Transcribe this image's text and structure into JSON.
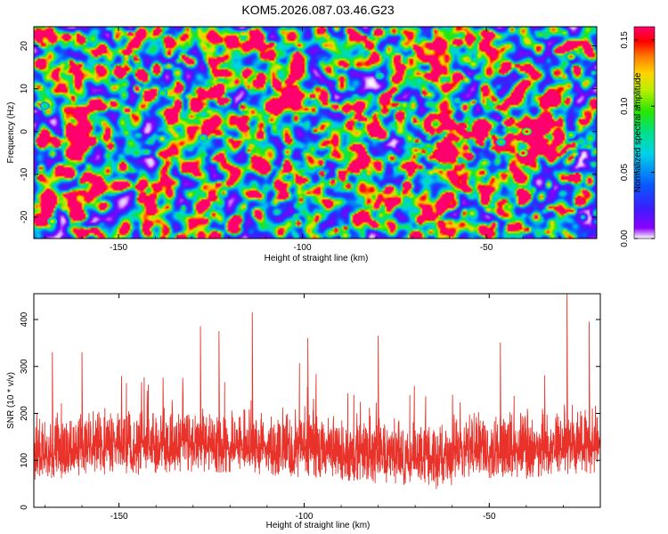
{
  "title": "KOM5.2026.087.03.46.G23",
  "colors": {
    "snr_line": "#e8322a",
    "background": "#ffffff",
    "axis": "#000000"
  },
  "chart_data": [
    {
      "type": "heatmap",
      "xlabel": "Height of straight line (km)",
      "ylabel": "Frequency (Hz)",
      "xlim": [
        -173,
        -20
      ],
      "ylim": [
        -25,
        24.5
      ],
      "x_ticks": [
        -150,
        -100,
        -50
      ],
      "x_tick_labels": [
        "-150",
        "-100",
        "-50"
      ],
      "y_ticks": [
        -20,
        -10,
        0,
        10,
        20
      ],
      "y_tick_labels": [
        "-20",
        "-10",
        "0",
        "10",
        "20"
      ],
      "colorbar": {
        "label": "Normalized spectral amplitude",
        "range": [
          0,
          0.16
        ],
        "ticks": [
          0.0,
          0.05,
          0.1,
          0.15
        ],
        "tick_labels": [
          "0.00",
          "0.05",
          "0.10",
          "0.15"
        ],
        "colormap": [
          "#ffffff",
          "#8a00ff",
          "#3c1dff",
          "#0a57ff",
          "#00d2e8",
          "#00e08a",
          "#28e600",
          "#b8ef00",
          "#ffd400",
          "#ff7a00",
          "#ff0000",
          "#ff006e"
        ]
      },
      "peaks": [
        {
          "x": -40,
          "y": -5,
          "value": 0.16
        },
        {
          "x": -39,
          "y": 0,
          "value": 0.15
        },
        {
          "x": -27,
          "y": 17.5,
          "value": 0.14
        },
        {
          "x": -168,
          "y": -21,
          "value": 0.12
        },
        {
          "x": -127,
          "y": -1.5,
          "value": 0.1
        },
        {
          "x": -138,
          "y": 9,
          "value": 0.1
        },
        {
          "x": -27,
          "y": -0.8,
          "value": 0.11
        },
        {
          "x": -46,
          "y": -2.5,
          "value": 0.1
        },
        {
          "x": -79,
          "y": 13,
          "value": 0.09
        },
        {
          "x": -170,
          "y": 6,
          "value": 0.09
        }
      ]
    },
    {
      "type": "line",
      "xlabel": "Height of straight line (km)",
      "ylabel": "SNR (10 * v/v)",
      "xlim": [
        -173,
        -20
      ],
      "ylim": [
        0,
        455
      ],
      "x_ticks": [
        -150,
        -100,
        -50
      ],
      "x_tick_labels": [
        "-150",
        "-100",
        "-50"
      ],
      "y_ticks": [
        0,
        100,
        200,
        300,
        400
      ],
      "y_tick_labels": [
        "0",
        "100",
        "200",
        "300",
        "400"
      ],
      "series": [
        {
          "color": "#e8322a",
          "baseline": 130,
          "spread": 55,
          "min": 20,
          "notable_peaks": [
            {
              "x": -168,
              "y": 330
            },
            {
              "x": -160,
              "y": 330
            },
            {
              "x": -128,
              "y": 385
            },
            {
              "x": -123,
              "y": 375
            },
            {
              "x": -114,
              "y": 415
            },
            {
              "x": -99,
              "y": 360
            },
            {
              "x": -80,
              "y": 365
            },
            {
              "x": -47,
              "y": 350
            },
            {
              "x": -29,
              "y": 460
            },
            {
              "x": -23,
              "y": 395
            }
          ]
        }
      ]
    }
  ]
}
